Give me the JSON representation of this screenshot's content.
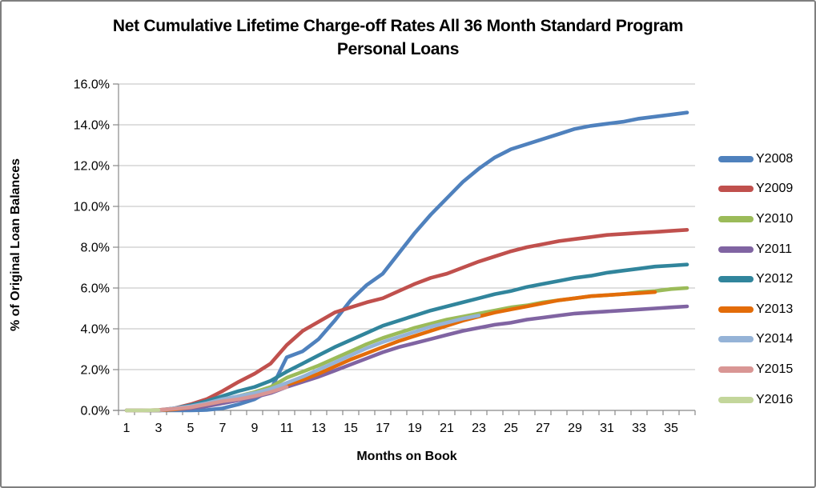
{
  "title": {
    "line1": "Net Cumulative Lifetime Charge-off Rates All 36 Month Standard Program",
    "line2": "Personal Loans"
  },
  "y_axis": {
    "title": "% of Original Loan Balances",
    "tick_labels": [
      "0.0%",
      "2.0%",
      "4.0%",
      "6.0%",
      "8.0%",
      "10.0%",
      "12.0%",
      "14.0%",
      "16.0%"
    ],
    "min": 0,
    "max": 16,
    "step": 2
  },
  "x_axis": {
    "title": "Months on Book",
    "tick_labels": [
      "1",
      "3",
      "5",
      "7",
      "9",
      "11",
      "13",
      "15",
      "17",
      "19",
      "21",
      "23",
      "25",
      "27",
      "29",
      "31",
      "33",
      "35"
    ],
    "months_total": 36
  },
  "colors": {
    "gridline": "#bfbfbf",
    "axis": "#898989",
    "text": "#000000"
  },
  "chart_data": {
    "type": "line",
    "title": "Net Cumulative Lifetime Charge-off Rates All 36 Month Standard Program Personal Loans",
    "xlabel": "Months on Book",
    "ylabel": "% of Original Loan Balances",
    "x_unit": "month on book, 1-36",
    "y_unit": "percent of original loan balances",
    "ylim": [
      0,
      16
    ],
    "grid": true,
    "legend_position": "right",
    "series": [
      {
        "name": "Y2008",
        "color": "#4F81BD",
        "start_month": 1,
        "values": [
          0,
          0,
          0,
          0,
          0,
          0.02,
          0.1,
          0.3,
          0.55,
          1.0,
          2.6,
          2.9,
          3.5,
          4.4,
          5.4,
          6.15,
          6.7,
          7.7,
          8.7,
          9.6,
          10.4,
          11.2,
          11.85,
          12.4,
          12.8,
          13.05,
          13.3,
          13.55,
          13.8,
          13.95,
          14.05,
          14.15,
          14.3,
          14.4,
          14.5,
          14.6
        ]
      },
      {
        "name": "Y2009",
        "color": "#C0504D",
        "start_month": 1,
        "values": [
          0,
          0,
          0.02,
          0.1,
          0.3,
          0.55,
          0.95,
          1.4,
          1.8,
          2.3,
          3.2,
          3.9,
          4.35,
          4.8,
          5.05,
          5.3,
          5.5,
          5.85,
          6.2,
          6.5,
          6.7,
          7.0,
          7.3,
          7.55,
          7.8,
          8.0,
          8.15,
          8.3,
          8.4,
          8.5,
          8.6,
          8.65,
          8.7,
          8.75,
          8.8,
          8.85
        ]
      },
      {
        "name": "Y2010",
        "color": "#9BBB59",
        "start_month": 1,
        "values": [
          0,
          0,
          0,
          0.05,
          0.15,
          0.3,
          0.5,
          0.7,
          0.9,
          1.15,
          1.6,
          1.9,
          2.2,
          2.55,
          2.9,
          3.25,
          3.55,
          3.8,
          4.05,
          4.25,
          4.45,
          4.6,
          4.75,
          4.9,
          5.05,
          5.15,
          5.3,
          5.4,
          5.5,
          5.6,
          5.65,
          5.7,
          5.8,
          5.85,
          5.95,
          6.0
        ]
      },
      {
        "name": "Y2011",
        "color": "#8064A2",
        "start_month": 1,
        "values": [
          0,
          0,
          0,
          0.05,
          0.1,
          0.2,
          0.35,
          0.5,
          0.65,
          0.85,
          1.15,
          1.4,
          1.65,
          1.95,
          2.25,
          2.55,
          2.85,
          3.1,
          3.3,
          3.5,
          3.7,
          3.9,
          4.05,
          4.2,
          4.3,
          4.45,
          4.55,
          4.65,
          4.75,
          4.8,
          4.85,
          4.9,
          4.95,
          5.0,
          5.05,
          5.1
        ]
      },
      {
        "name": "Y2012",
        "color": "#31859C",
        "start_month": 1,
        "values": [
          0,
          0,
          0,
          0.1,
          0.25,
          0.45,
          0.7,
          0.95,
          1.15,
          1.45,
          1.9,
          2.3,
          2.7,
          3.1,
          3.45,
          3.8,
          4.15,
          4.4,
          4.65,
          4.9,
          5.1,
          5.3,
          5.5,
          5.7,
          5.85,
          6.05,
          6.2,
          6.35,
          6.5,
          6.6,
          6.75,
          6.85,
          6.95,
          7.05,
          7.1,
          7.15
        ]
      },
      {
        "name": "Y2013",
        "color": "#E36C09",
        "start_month": 1,
        "values": [
          0,
          0,
          0,
          0.05,
          0.15,
          0.3,
          0.45,
          0.6,
          0.75,
          0.95,
          1.25,
          1.5,
          1.8,
          2.15,
          2.5,
          2.8,
          3.1,
          3.4,
          3.65,
          3.9,
          4.15,
          4.4,
          4.6,
          4.8,
          4.95,
          5.1,
          5.25,
          5.4,
          5.5,
          5.6,
          5.65,
          5.7,
          5.75,
          5.8
        ]
      },
      {
        "name": "Y2014",
        "color": "#95B3D7",
        "start_month": 1,
        "values": [
          0,
          0,
          0,
          0.1,
          0.2,
          0.35,
          0.55,
          0.7,
          0.85,
          1.05,
          1.35,
          1.65,
          2.0,
          2.35,
          2.7,
          3.05,
          3.35,
          3.6,
          3.85,
          4.1,
          4.3,
          4.5,
          4.65
        ]
      },
      {
        "name": "Y2015",
        "color": "#D99694",
        "start_month": 1,
        "values": [
          0,
          0,
          0.02,
          0.08,
          0.15,
          0.3,
          0.45,
          0.55,
          0.7,
          0.9,
          1.15
        ]
      },
      {
        "name": "Y2016",
        "color": "#C3D69B",
        "start_month": 1,
        "values": [
          0,
          0,
          0.02
        ]
      }
    ]
  }
}
